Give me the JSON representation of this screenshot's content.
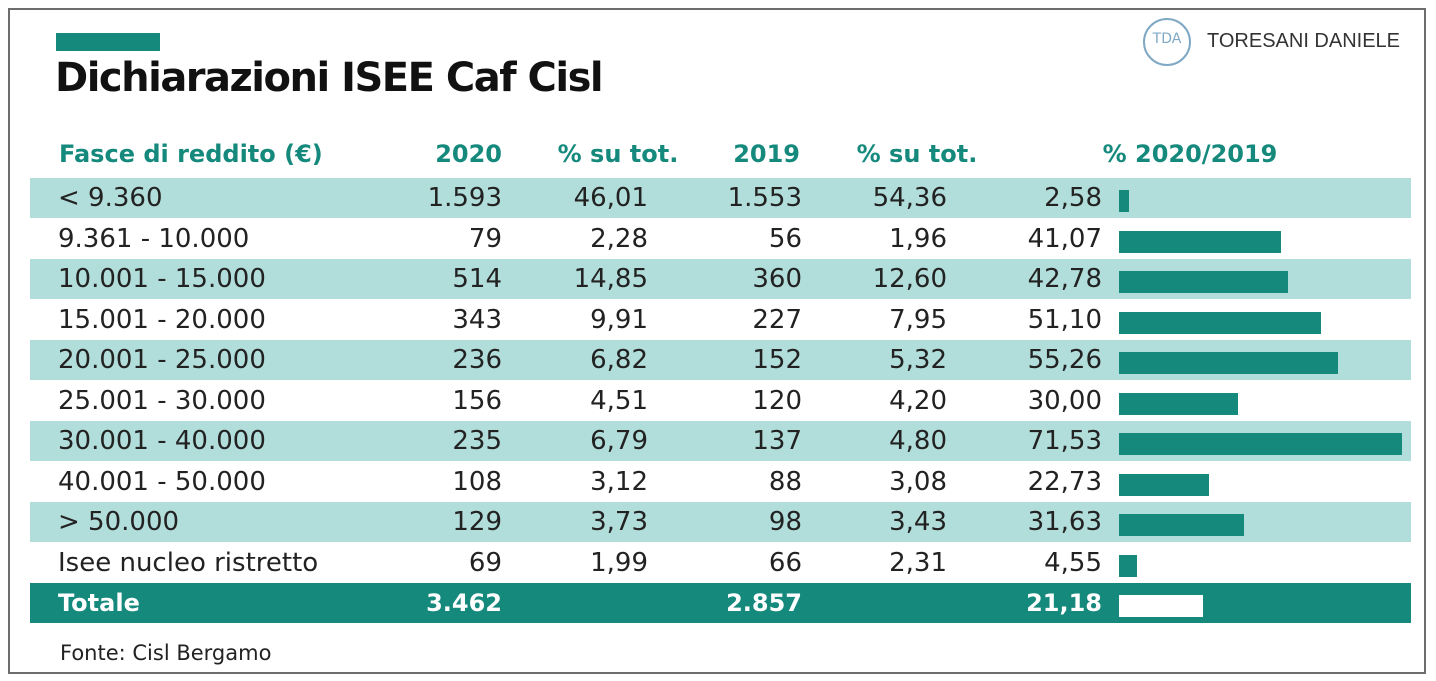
{
  "title": "Dichiarazioni ISEE Caf Cisl",
  "logo_text": "TDA",
  "author": "TORESANI DANIELE",
  "source": "Fonte: Cisl Bergamo",
  "colors": {
    "accent": "#14897c",
    "row_shade": "#b1ddda",
    "logo": "#7fa8c4"
  },
  "chart_data": {
    "type": "table",
    "headers": [
      "Fasce di reddito (€)",
      "2020",
      "% su tot.",
      "2019",
      "% su tot.",
      "% 2020/2019"
    ],
    "rows": [
      {
        "label": "< 9.360",
        "y2020": "1.593",
        "pct2020": "46,01",
        "y2019": "1.553",
        "pct2019": "54,36",
        "change": "2,58",
        "change_value": 2.58
      },
      {
        "label": "9.361 - 10.000",
        "y2020": "79",
        "pct2020": "2,28",
        "y2019": "56",
        "pct2019": "1,96",
        "change": "41,07",
        "change_value": 41.07
      },
      {
        "label": "10.001 - 15.000",
        "y2020": "514",
        "pct2020": "14,85",
        "y2019": "360",
        "pct2019": "12,60",
        "change": "42,78",
        "change_value": 42.78
      },
      {
        "label": "15.001 - 20.000",
        "y2020": "343",
        "pct2020": "9,91",
        "y2019": "227",
        "pct2019": "7,95",
        "change": "51,10",
        "change_value": 51.1
      },
      {
        "label": "20.001 - 25.000",
        "y2020": "236",
        "pct2020": "6,82",
        "y2019": "152",
        "pct2019": "5,32",
        "change": "55,26",
        "change_value": 55.26
      },
      {
        "label": "25.001 - 30.000",
        "y2020": "156",
        "pct2020": "4,51",
        "y2019": "120",
        "pct2019": "4,20",
        "change": "30,00",
        "change_value": 30.0
      },
      {
        "label": "30.001 - 40.000",
        "y2020": "235",
        "pct2020": "6,79",
        "y2019": "137",
        "pct2019": "4,80",
        "change": "71,53",
        "change_value": 71.53
      },
      {
        "label": "40.001 - 50.000",
        "y2020": "108",
        "pct2020": "3,12",
        "y2019": "88",
        "pct2019": "3,08",
        "change": "22,73",
        "change_value": 22.73
      },
      {
        "label": "> 50.000",
        "y2020": "129",
        "pct2020": "3,73",
        "y2019": "98",
        "pct2019": "3,43",
        "change": "31,63",
        "change_value": 31.63
      },
      {
        "label": "Isee nucleo ristretto",
        "y2020": "69",
        "pct2020": "1,99",
        "y2019": "66",
        "pct2019": "2,31",
        "change": "4,55",
        "change_value": 4.55
      }
    ],
    "total": {
      "label": "Totale",
      "y2020": "3.462",
      "y2019": "2.857",
      "change": "21,18",
      "change_value": 21.18
    },
    "bar_max": 71.53
  }
}
